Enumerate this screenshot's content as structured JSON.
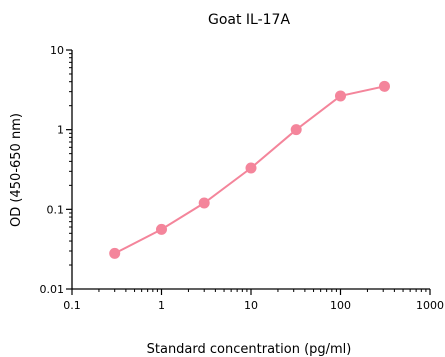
{
  "chart_data": {
    "type": "line",
    "title": "Goat IL-17A",
    "xlabel": "Standard concentration (pg/ml)",
    "ylabel": "OD (450-650 nm)",
    "x_scale": "log",
    "y_scale": "log",
    "xlim": [
      0.1,
      1000
    ],
    "ylim": [
      0.01,
      10
    ],
    "x_ticks": [
      0.1,
      1,
      10,
      100,
      1000
    ],
    "x_tick_labels": [
      "0.1",
      "1",
      "10",
      "100",
      "1000"
    ],
    "y_ticks": [
      0.01,
      0.1,
      1,
      10
    ],
    "y_tick_labels": [
      "0.01",
      "0.1",
      "1",
      "10"
    ],
    "grid": false,
    "legend": "none",
    "series_color": "#f4859b",
    "series": [
      {
        "x": [
          0.3,
          1,
          3,
          10,
          32,
          100,
          310
        ],
        "y": [
          0.028,
          0.056,
          0.12,
          0.33,
          1.0,
          2.65,
          3.5
        ]
      }
    ]
  }
}
